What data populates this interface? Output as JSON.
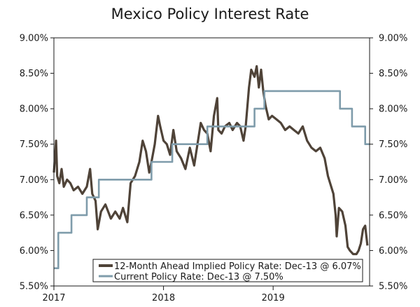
{
  "chart_data": {
    "type": "line",
    "title": "Mexico Policy Interest Rate",
    "xlabel": "",
    "ylabel": "",
    "xlim": [
      2017.0,
      2019.88
    ],
    "ylim": [
      5.5,
      9.0
    ],
    "y_ticks": [
      "5.50%",
      "6.00%",
      "6.50%",
      "7.00%",
      "7.50%",
      "8.00%",
      "8.50%",
      "9.00%"
    ],
    "y_tick_values": [
      5.5,
      6.0,
      6.5,
      7.0,
      7.5,
      8.0,
      8.5,
      9.0
    ],
    "x_ticks": [
      "2017",
      "2018",
      "2019"
    ],
    "x_tick_values": [
      2017,
      2018,
      2019
    ],
    "grid": false,
    "legend_position": "bottom-right",
    "series": [
      {
        "name": "12-Month Ahead Implied Policy Rate: Dec-13 @ 6.07%",
        "color": "#4f4338",
        "step": false,
        "points": [
          [
            2017.0,
            7.1
          ],
          [
            2017.02,
            7.55
          ],
          [
            2017.03,
            7.05
          ],
          [
            2017.05,
            6.95
          ],
          [
            2017.07,
            7.15
          ],
          [
            2017.09,
            6.9
          ],
          [
            2017.12,
            7.0
          ],
          [
            2017.15,
            6.95
          ],
          [
            2017.18,
            6.85
          ],
          [
            2017.22,
            6.9
          ],
          [
            2017.26,
            6.8
          ],
          [
            2017.3,
            6.9
          ],
          [
            2017.33,
            7.15
          ],
          [
            2017.35,
            6.8
          ],
          [
            2017.38,
            6.7
          ],
          [
            2017.4,
            6.3
          ],
          [
            2017.43,
            6.55
          ],
          [
            2017.47,
            6.65
          ],
          [
            2017.52,
            6.45
          ],
          [
            2017.56,
            6.55
          ],
          [
            2017.6,
            6.45
          ],
          [
            2017.63,
            6.6
          ],
          [
            2017.67,
            6.4
          ],
          [
            2017.7,
            6.95
          ],
          [
            2017.74,
            7.05
          ],
          [
            2017.78,
            7.25
          ],
          [
            2017.81,
            7.55
          ],
          [
            2017.84,
            7.4
          ],
          [
            2017.87,
            7.1
          ],
          [
            2017.89,
            7.25
          ],
          [
            2017.92,
            7.5
          ],
          [
            2017.95,
            7.9
          ],
          [
            2017.97,
            7.75
          ],
          [
            2018.0,
            7.55
          ],
          [
            2018.03,
            7.5
          ],
          [
            2018.06,
            7.35
          ],
          [
            2018.09,
            7.7
          ],
          [
            2018.12,
            7.4
          ],
          [
            2018.16,
            7.3
          ],
          [
            2018.2,
            7.15
          ],
          [
            2018.24,
            7.45
          ],
          [
            2018.28,
            7.2
          ],
          [
            2018.31,
            7.5
          ],
          [
            2018.34,
            7.8
          ],
          [
            2018.37,
            7.7
          ],
          [
            2018.4,
            7.65
          ],
          [
            2018.43,
            7.4
          ],
          [
            2018.46,
            7.9
          ],
          [
            2018.49,
            8.15
          ],
          [
            2018.5,
            7.7
          ],
          [
            2018.53,
            7.65
          ],
          [
            2018.56,
            7.75
          ],
          [
            2018.6,
            7.8
          ],
          [
            2018.63,
            7.7
          ],
          [
            2018.67,
            7.8
          ],
          [
            2018.7,
            7.75
          ],
          [
            2018.73,
            7.55
          ],
          [
            2018.75,
            7.75
          ],
          [
            2018.78,
            8.3
          ],
          [
            2018.8,
            8.55
          ],
          [
            2018.83,
            8.45
          ],
          [
            2018.85,
            8.6
          ],
          [
            2018.87,
            8.3
          ],
          [
            2018.89,
            8.55
          ],
          [
            2018.91,
            8.25
          ],
          [
            2018.93,
            8.05
          ],
          [
            2018.96,
            7.85
          ],
          [
            2018.99,
            7.9
          ],
          [
            2019.03,
            7.85
          ],
          [
            2019.07,
            7.8
          ],
          [
            2019.11,
            7.7
          ],
          [
            2019.15,
            7.75
          ],
          [
            2019.19,
            7.7
          ],
          [
            2019.23,
            7.65
          ],
          [
            2019.27,
            7.75
          ],
          [
            2019.31,
            7.55
          ],
          [
            2019.35,
            7.45
          ],
          [
            2019.39,
            7.4
          ],
          [
            2019.43,
            7.45
          ],
          [
            2019.47,
            7.3
          ],
          [
            2019.5,
            7.05
          ],
          [
            2019.52,
            6.95
          ],
          [
            2019.55,
            6.8
          ],
          [
            2019.57,
            6.5
          ],
          [
            2019.58,
            6.2
          ],
          [
            2019.6,
            6.6
          ],
          [
            2019.63,
            6.55
          ],
          [
            2019.66,
            6.35
          ],
          [
            2019.68,
            6.05
          ],
          [
            2019.7,
            6.0
          ],
          [
            2019.73,
            5.95
          ],
          [
            2019.76,
            5.95
          ],
          [
            2019.78,
            6.0
          ],
          [
            2019.8,
            6.1
          ],
          [
            2019.82,
            6.3
          ],
          [
            2019.84,
            6.35
          ],
          [
            2019.86,
            6.07
          ]
        ]
      },
      {
        "name": "Current Policy Rate: Dec-13 @ 7.50%",
        "color": "#7f9cab",
        "step": true,
        "points": [
          [
            2017.0,
            5.75
          ],
          [
            2017.04,
            6.25
          ],
          [
            2017.16,
            6.5
          ],
          [
            2017.3,
            6.75
          ],
          [
            2017.41,
            7.0
          ],
          [
            2017.89,
            7.25
          ],
          [
            2018.08,
            7.5
          ],
          [
            2018.4,
            7.75
          ],
          [
            2018.83,
            8.0
          ],
          [
            2018.92,
            8.25
          ],
          [
            2019.61,
            8.0
          ],
          [
            2019.72,
            7.75
          ],
          [
            2019.84,
            7.5
          ],
          [
            2019.88,
            7.5
          ]
        ]
      }
    ]
  }
}
